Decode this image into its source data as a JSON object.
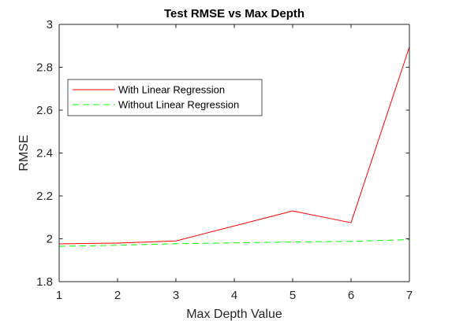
{
  "chart_data": {
    "type": "line",
    "title": "Test RMSE vs Max Depth",
    "xlabel": "Max Depth Value",
    "ylabel": "RMSE",
    "xlim": [
      1,
      7
    ],
    "ylim": [
      1.8,
      3
    ],
    "x_ticks": [
      1,
      2,
      3,
      4,
      5,
      6,
      7
    ],
    "y_ticks": [
      1.8,
      2,
      2.2,
      2.4,
      2.6,
      2.8,
      3
    ],
    "x_tick_labels": [
      "1",
      "2",
      "3",
      "4",
      "5",
      "6",
      "7"
    ],
    "y_tick_labels": [
      "1.8",
      "2",
      "2.2",
      "2.4",
      "2.6",
      "2.8",
      "3"
    ],
    "grid": false,
    "legend_position": "top-left",
    "series": [
      {
        "name": "With Linear Regression",
        "color": "#ff0000",
        "line_style": "solid",
        "x": [
          1,
          2,
          3,
          5,
          6,
          7
        ],
        "y": [
          1.976,
          1.98,
          1.99,
          2.13,
          2.075,
          2.895
        ]
      },
      {
        "name": "Without Linear Regression",
        "color": "#00ff00",
        "line_style": "dashed",
        "x": [
          1,
          2,
          3,
          5,
          6,
          7
        ],
        "y": [
          1.965,
          1.97,
          1.977,
          1.985,
          1.988,
          1.996
        ]
      }
    ]
  }
}
